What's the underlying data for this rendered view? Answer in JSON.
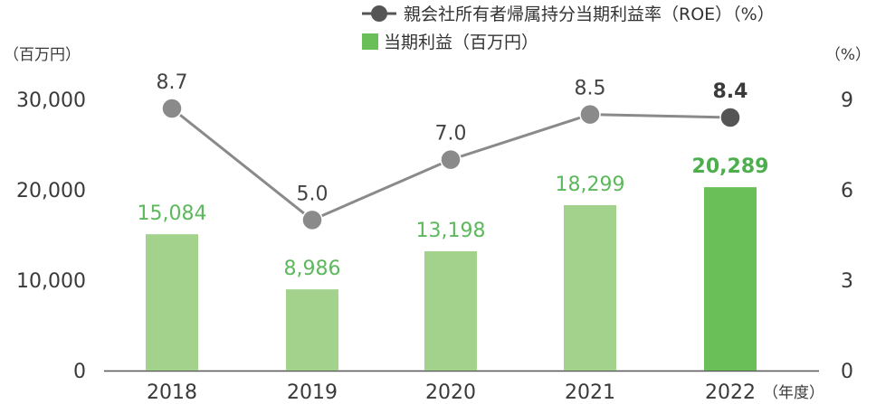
{
  "chart_data": {
    "type": "bar",
    "categories": [
      "2018",
      "2019",
      "2020",
      "2021",
      "2022"
    ],
    "x_unit": "（年度）",
    "left_axis": {
      "unit": "（百万円）",
      "range": [
        0,
        30000
      ],
      "ticks": [
        "0",
        "10,000",
        "20,000",
        "30,000"
      ]
    },
    "right_axis": {
      "unit": "（%）",
      "range": [
        0,
        9
      ],
      "ticks": [
        "0",
        "3",
        "6",
        "9"
      ]
    },
    "series": [
      {
        "name": "当期利益（百万円）",
        "type": "bar",
        "axis": "left",
        "values": [
          15084,
          8986,
          13198,
          18299,
          20289
        ],
        "labels": [
          "15,084",
          "8,986",
          "13,198",
          "18,299",
          "20,289"
        ],
        "color": "#a2d28b",
        "highlight_color": "#6bbf59",
        "highlight_index": 4
      },
      {
        "name": "親会社所有者帰属持分当期利益率（ROE）（%）",
        "type": "line",
        "axis": "right",
        "values": [
          8.7,
          5.0,
          7.0,
          8.5,
          8.4
        ],
        "labels": [
          "8.7",
          "5.0",
          "7.0",
          "8.5",
          "8.4"
        ],
        "color": "#8a8a8a",
        "marker_color": "#8a8a8a",
        "highlight_color": "#555555",
        "highlight_index": 4
      }
    ],
    "legend_position": "top-right",
    "grid": false
  }
}
